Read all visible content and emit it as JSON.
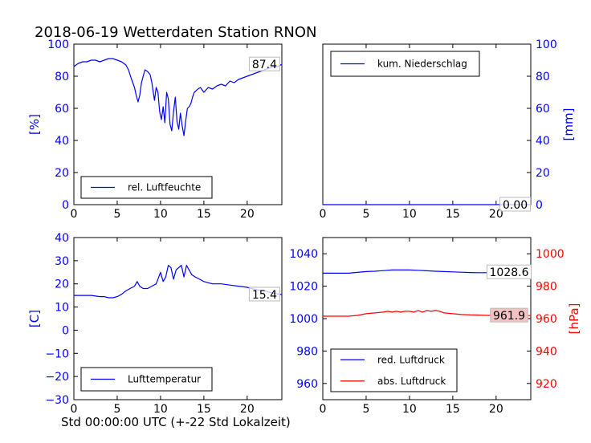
{
  "title": "2018-06-19 Wetterdaten Station RNON",
  "xlabel": "Std 00:00:00 UTC (+-22 Std Lokalzeit)",
  "chart_data": [
    {
      "type": "line",
      "xlim": [
        0,
        24
      ],
      "xticks": [
        0,
        5,
        10,
        15,
        20
      ],
      "ylim": [
        0,
        100
      ],
      "yticks": [
        0,
        20,
        40,
        60,
        80,
        100
      ],
      "ylabel": "[%]",
      "axis_side": "left",
      "axis_color": "#0000ff",
      "legend_position": "lower-left",
      "series": [
        {
          "name": "rel. Luftfeuchte",
          "color": "#0000ff",
          "x": [
            0,
            0.5,
            1,
            1.5,
            2,
            2.5,
            3,
            3.5,
            4,
            4.5,
            5,
            5.5,
            6,
            6.3,
            6.6,
            7,
            7.2,
            7.4,
            7.6,
            7.8,
            8,
            8.2,
            8.5,
            8.8,
            9,
            9.3,
            9.5,
            9.7,
            9.9,
            10.1,
            10.3,
            10.5,
            10.7,
            10.9,
            11.1,
            11.3,
            11.5,
            11.7,
            11.9,
            12.1,
            12.3,
            12.5,
            12.7,
            12.9,
            13.1,
            13.3,
            13.5,
            13.7,
            13.9,
            14.1,
            14.3,
            14.6,
            15,
            15.5,
            16,
            16.5,
            17,
            17.5,
            18,
            18.5,
            19,
            19.5,
            20,
            20.5,
            21,
            21.5,
            22,
            22.5,
            23,
            23.5,
            24
          ],
          "values": [
            86,
            88,
            89,
            89,
            90,
            90,
            89,
            90,
            91,
            91,
            90,
            89,
            87,
            84,
            79,
            73,
            68,
            64,
            68,
            76,
            80,
            84,
            83,
            81,
            76,
            65,
            73,
            70,
            58,
            53,
            61,
            51,
            70,
            66,
            50,
            46,
            58,
            67,
            52,
            47,
            57,
            49,
            43,
            52,
            60,
            61,
            63,
            67,
            70,
            71,
            72,
            73,
            70,
            73,
            72,
            74,
            75,
            74,
            77,
            76,
            78,
            79,
            80,
            81,
            82,
            83,
            84,
            85,
            86,
            86,
            87.4
          ]
        }
      ],
      "annotations": [
        {
          "label": "87.4",
          "x": 22,
          "y": 87.4
        }
      ]
    },
    {
      "type": "line",
      "xlim": [
        0,
        24
      ],
      "xticks": [
        0,
        5,
        10,
        15,
        20
      ],
      "ylim": [
        0,
        100
      ],
      "yticks": [
        0,
        20,
        40,
        60,
        80,
        100
      ],
      "ylabel": "[mm]",
      "axis_side": "right",
      "axis_color": "#0000ff",
      "legend_position": "upper-left",
      "series": [
        {
          "name": "kum. Niederschlag",
          "color": "#0000ff",
          "x": [
            0,
            24
          ],
          "values": [
            0,
            0
          ]
        }
      ],
      "annotations": [
        {
          "label": "0.00",
          "x": 22.2,
          "y": 0
        }
      ]
    },
    {
      "type": "line",
      "xlim": [
        0,
        24
      ],
      "xticks": [
        0,
        5,
        10,
        15,
        20
      ],
      "ylim": [
        -30,
        40
      ],
      "yticks": [
        -30,
        -20,
        -10,
        0,
        10,
        20,
        30,
        40
      ],
      "ylabel": "[C]",
      "axis_side": "left",
      "axis_color": "#0000ff",
      "legend_position": "lower-left",
      "series": [
        {
          "name": "Lufttemperatur",
          "color": "#0000ff",
          "x": [
            0,
            1,
            2,
            3,
            3.5,
            4,
            4.5,
            5,
            5.5,
            6,
            6.5,
            7,
            7.3,
            7.6,
            8,
            8.5,
            9,
            9.5,
            10,
            10.3,
            10.6,
            10.9,
            11.2,
            11.5,
            11.8,
            12.1,
            12.4,
            12.7,
            13,
            13.3,
            13.6,
            14,
            14.5,
            15,
            15.5,
            16,
            17,
            18,
            19,
            20,
            21,
            22,
            23,
            24
          ],
          "values": [
            15,
            15,
            15,
            14.5,
            14.5,
            14,
            14,
            14.5,
            15.5,
            17,
            18,
            19,
            21,
            19,
            18,
            18,
            19,
            20,
            25,
            21,
            23,
            28,
            27,
            22,
            26,
            27,
            28,
            23,
            28,
            26,
            24,
            23,
            22,
            21,
            20.5,
            20,
            20,
            19.5,
            19,
            18.5,
            17.5,
            17,
            16,
            15.4
          ]
        }
      ],
      "annotations": [
        {
          "label": "15.4",
          "x": 22,
          "y": 15.4
        }
      ]
    },
    {
      "type": "line",
      "xlim": [
        0,
        24
      ],
      "xticks": [
        0,
        5,
        10,
        15,
        20
      ],
      "ylim": [
        950,
        1050
      ],
      "yticks": [
        960,
        980,
        1000,
        1020,
        1040
      ],
      "right_ylim": [
        910,
        1010
      ],
      "right_yticks": [
        920,
        940,
        960,
        980,
        1000
      ],
      "ylabel": "[hPa]",
      "axis_side": "both",
      "axis_color": "#0000ff",
      "right_axis_color": "#ff0000",
      "legend_position": "lower-left",
      "series": [
        {
          "name": "red. Luftdruck",
          "color": "#0000ff",
          "axis": "left",
          "x": [
            0,
            2,
            3,
            4,
            5,
            6,
            7,
            8,
            9,
            10,
            11,
            12,
            13,
            14,
            15,
            16,
            17,
            18,
            19,
            20,
            21,
            22,
            23,
            24
          ],
          "values": [
            1028,
            1028,
            1028,
            1028.5,
            1029,
            1029.2,
            1029.6,
            1030,
            1030,
            1030,
            1029.8,
            1029.5,
            1029.2,
            1029,
            1028.8,
            1028.6,
            1028.4,
            1028.3,
            1028.3,
            1028.5,
            1028.6,
            1028.6,
            1028.6,
            1028.6
          ]
        },
        {
          "name": "abs. Luftdruck",
          "color": "#ff0000",
          "axis": "right",
          "x": [
            0,
            2,
            3,
            4,
            5,
            6,
            7,
            7.5,
            8,
            8.5,
            9,
            9.5,
            10,
            10.5,
            11,
            11.5,
            12,
            12.5,
            13,
            13.5,
            14,
            15,
            16,
            17,
            18,
            19,
            20,
            21,
            22,
            23,
            24
          ],
          "values": [
            961.5,
            961.5,
            961.5,
            962,
            963,
            963.5,
            964,
            964.5,
            964,
            964.5,
            964,
            964.5,
            964.5,
            964,
            965,
            964,
            965,
            964.5,
            965,
            964.5,
            963.5,
            963,
            962.5,
            962.3,
            962.2,
            962,
            962,
            961.9,
            961.9,
            961.9,
            961.9
          ]
        }
      ],
      "annotations": [
        {
          "label": "1028.6",
          "x": 21.5,
          "y": 1028.6,
          "axis": "left",
          "bg": "#ffffff"
        },
        {
          "label": "961.9",
          "x": 21.5,
          "y": 961.9,
          "axis": "right",
          "bg": "#f4c2c2"
        }
      ]
    }
  ]
}
